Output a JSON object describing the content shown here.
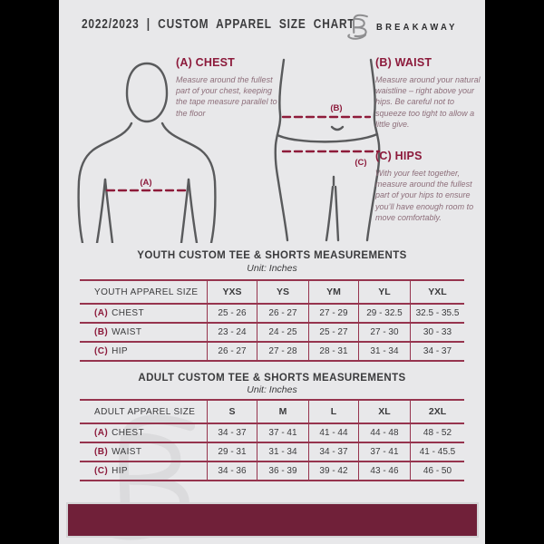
{
  "header": {
    "title": "2022/2023 | CUSTOM APPAREL SIZE CHART",
    "brand": "BREAKAWAY",
    "logo_icon": "breakaway-b-logo"
  },
  "instructions": [
    {
      "label": "(A) CHEST",
      "text": "Measure around the fullest part of your chest, keeping the tape measure parallel to the floor"
    },
    {
      "label": "(B) WAIST",
      "text": "Measure around your natural waistline – right above your hips. Be careful not to squeeze too tight to allow a little give."
    },
    {
      "label": "(C) HIPS",
      "text": "With your feet together, measure around the fullest part of your hips to ensure you’ll have enough room to move comfortably."
    }
  ],
  "diagram_labels": {
    "chest": "(A)",
    "waist": "(B)",
    "hips": "(C)"
  },
  "youth_table": {
    "title": "YOUTH CUSTOM TEE & SHORTS MEASUREMENTS",
    "unit": "Unit: Inches",
    "header": [
      "YOUTH APPAREL SIZE",
      "YXS",
      "YS",
      "YM",
      "YL",
      "YXL"
    ],
    "rows": [
      {
        "prefix": "(A)",
        "label": "CHEST",
        "values": [
          "25 - 26",
          "26 - 27",
          "27 - 29",
          "29 - 32.5",
          "32.5 - 35.5"
        ]
      },
      {
        "prefix": "(B)",
        "label": "WAIST",
        "values": [
          "23 - 24",
          "24 - 25",
          "25 - 27",
          "27 - 30",
          "30 - 33"
        ]
      },
      {
        "prefix": "(C)",
        "label": "HIP",
        "values": [
          "26 - 27",
          "27 - 28",
          "28 - 31",
          "31 - 34",
          "34 - 37"
        ]
      }
    ]
  },
  "adult_table": {
    "title": "ADULT CUSTOM TEE & SHORTS MEASUREMENTS",
    "unit": "Unit: Inches",
    "header": [
      "ADULT APPAREL SIZE",
      "S",
      "M",
      "L",
      "XL",
      "2XL"
    ],
    "rows": [
      {
        "prefix": "(A)",
        "label": "CHEST",
        "values": [
          "34 - 37",
          "37 - 41",
          "41 - 44",
          "44 - 48",
          "48 - 52"
        ]
      },
      {
        "prefix": "(B)",
        "label": "WAIST",
        "values": [
          "29 - 31",
          "31 - 34",
          "34 - 37",
          "37 - 41",
          "41 - 45.5"
        ]
      },
      {
        "prefix": "(C)",
        "label": "HIP",
        "values": [
          "34 - 36",
          "36 - 39",
          "39 - 42",
          "43 - 46",
          "46 - 50"
        ]
      }
    ]
  },
  "colors": {
    "page_bg": "#e8e8ea",
    "text_dark": "#3b3b3d",
    "accent_maroon": "#8c1a3b",
    "table_rule": "#96344e",
    "footer_bar": "#702039",
    "figure_stroke": "#595a5c",
    "watermark": "#d9d9db"
  }
}
